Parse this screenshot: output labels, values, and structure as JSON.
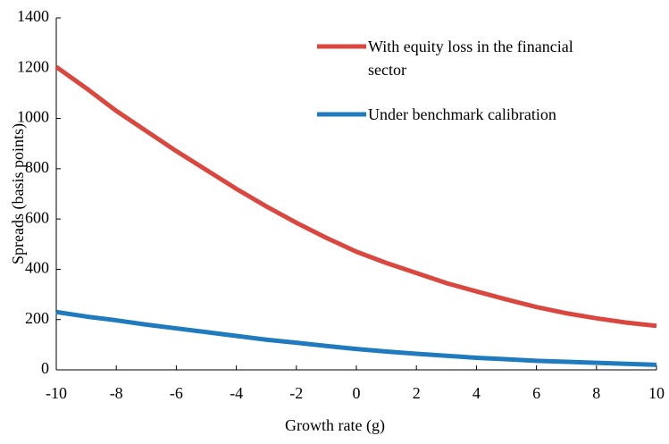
{
  "chart_data": {
    "type": "line",
    "x": [
      -10,
      -9,
      -8,
      -7,
      -6,
      -5,
      -4,
      -3,
      -2,
      -1,
      0,
      1,
      2,
      3,
      4,
      5,
      6,
      7,
      8,
      9,
      10
    ],
    "series": [
      {
        "name": "With equity loss in the financial sector",
        "color": "#d9473f",
        "values": [
          1205,
          1120,
          1030,
          950,
          870,
          795,
          720,
          650,
          585,
          525,
          470,
          425,
          385,
          345,
          312,
          280,
          250,
          225,
          205,
          188,
          175
        ]
      },
      {
        "name": "Under benchmark calibration",
        "color": "#1f7bbd",
        "values": [
          230,
          212,
          197,
          180,
          165,
          150,
          135,
          120,
          108,
          95,
          83,
          73,
          64,
          56,
          48,
          42,
          36,
          32,
          28,
          24,
          20
        ]
      }
    ],
    "xlabel": "Growth rate (g)",
    "ylabel": "Spreads (basis points)",
    "xlim": [
      -10,
      10
    ],
    "xticks": [
      -10,
      -8,
      -6,
      -4,
      -2,
      0,
      2,
      4,
      6,
      8,
      10
    ],
    "ylim": [
      0,
      1400
    ],
    "yticks": [
      0,
      200,
      400,
      600,
      800,
      1000,
      1200,
      1400
    ],
    "grid": false,
    "legend": "top-right"
  }
}
